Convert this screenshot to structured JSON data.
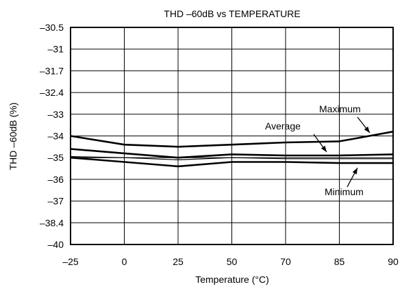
{
  "chart_data": {
    "type": "line",
    "title": "THD –60dB vs TEMPERATURE",
    "xlabel": "Temperature (°C)",
    "ylabel": "THD –60dB (%)",
    "x_tick_labels": [
      "–25",
      "0",
      "25",
      "50",
      "70",
      "85",
      "90"
    ],
    "y_tick_labels": [
      "–30.5",
      "–31",
      "–31.7",
      "–32.4",
      "–33",
      "–34",
      "–35",
      "–36",
      "–37",
      "–38.4",
      "–40"
    ],
    "x": [
      "–25",
      "0",
      "25",
      "50",
      "70",
      "85",
      "90"
    ],
    "grid": true,
    "series": [
      {
        "name": "Maximum",
        "values": [
          -34.0,
          -34.4,
          -34.5,
          -34.4,
          -34.3,
          -34.25,
          -33.8
        ]
      },
      {
        "name": "Average",
        "values": [
          -34.6,
          -34.8,
          -35.0,
          -34.85,
          -34.9,
          -34.9,
          -34.85
        ]
      },
      {
        "name": "",
        "values": [
          -34.95,
          -35.0,
          -35.1,
          -35.0,
          -35.05,
          -35.05,
          -35.05
        ]
      },
      {
        "name": "Minimum",
        "values": [
          -35.0,
          -35.2,
          -35.4,
          -35.2,
          -35.2,
          -35.25,
          -35.25
        ]
      }
    ],
    "annotations": [
      "Maximum",
      "Average",
      "Minimum"
    ],
    "line_color": "#000000"
  }
}
